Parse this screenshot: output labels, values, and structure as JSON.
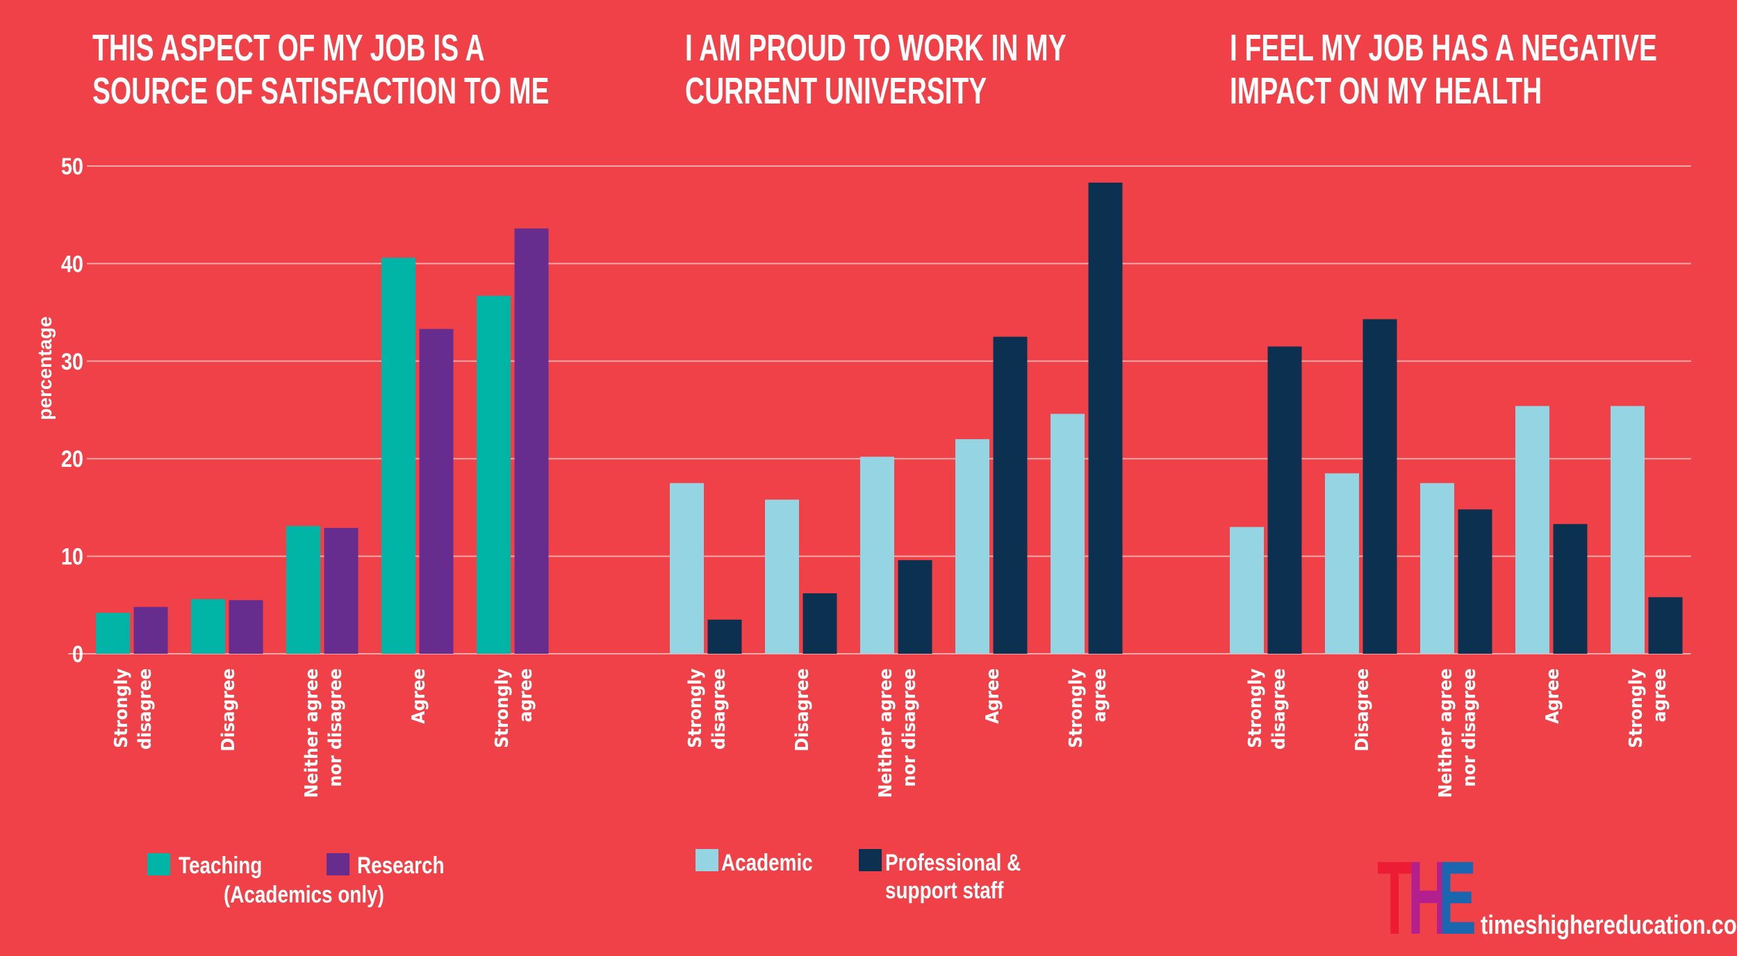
{
  "colors": {
    "background": "#ef4147",
    "teaching": "#00b5a6",
    "research": "#662d8f",
    "academic": "#95d4e3",
    "professional": "#0c3050",
    "gridline": "#f7a9a9",
    "logo_t": "#ec1c35",
    "logo_h": "#b31f8e",
    "logo_e": "#1a67b0"
  },
  "titles": [
    [
      "THIS ASPECT OF MY JOB IS A",
      "SOURCE OF SATISFACTION TO ME"
    ],
    [
      "I AM PROUD TO WORK IN MY",
      "CURRENT UNIVERSITY"
    ],
    [
      "I FEEL MY JOB HAS A NEGATIVE",
      "IMPACT ON MY HEALTH"
    ]
  ],
  "legends": {
    "chart1": {
      "teaching": "Teaching",
      "research": "Research",
      "note": "(Academics only)"
    },
    "chart2": {
      "academic": "Academic",
      "professional_line1": "Professional &",
      "professional_line2": "support staff"
    }
  },
  "branding": {
    "logo_letters": [
      "T",
      "H",
      "E"
    ],
    "site": "timeshighereducation.com"
  },
  "chart_data": [
    {
      "type": "bar",
      "title": "THIS ASPECT OF MY JOB IS A SOURCE OF SATISFACTION TO ME",
      "ylabel": "percentage",
      "xlabel": "",
      "ylim": [
        0,
        50
      ],
      "yticks": [
        0,
        10,
        20,
        30,
        40,
        50
      ],
      "grid": true,
      "legend": "bottom-left",
      "categories": [
        [
          "Strongly",
          "disagree"
        ],
        [
          "Disagree"
        ],
        [
          "Neither agree",
          "nor disagree"
        ],
        [
          "Agree"
        ],
        [
          "Strongly",
          "agree"
        ]
      ],
      "series": [
        {
          "name": "Teaching",
          "color": "#00b5a6",
          "values": [
            4.2,
            5.6,
            13.1,
            40.6,
            36.7
          ]
        },
        {
          "name": "Research",
          "color": "#662d8f",
          "values": [
            4.8,
            5.5,
            12.9,
            33.3,
            43.6
          ]
        }
      ]
    },
    {
      "type": "bar",
      "title": "I AM PROUD TO WORK IN MY CURRENT UNIVERSITY",
      "ylabel": "percentage",
      "xlabel": "",
      "ylim": [
        0,
        50
      ],
      "grid": true,
      "legend": "bottom-center",
      "categories": [
        [
          "Strongly",
          "disagree"
        ],
        [
          "Disagree"
        ],
        [
          "Neither agree",
          "nor disagree"
        ],
        [
          "Agree"
        ],
        [
          "Strongly",
          "agree"
        ]
      ],
      "series": [
        {
          "name": "Academic",
          "color": "#95d4e3",
          "values": [
            17.5,
            15.8,
            20.2,
            22.0,
            24.6
          ]
        },
        {
          "name": "Professional & support staff",
          "color": "#0c3050",
          "values": [
            3.5,
            6.2,
            9.6,
            32.5,
            48.3
          ]
        }
      ]
    },
    {
      "type": "bar",
      "title": "I FEEL MY JOB HAS A NEGATIVE IMPACT ON MY HEALTH",
      "ylabel": "percentage",
      "xlabel": "",
      "ylim": [
        0,
        50
      ],
      "grid": true,
      "legend": "bottom-center",
      "categories": [
        [
          "Strongly",
          "disagree"
        ],
        [
          "Disagree"
        ],
        [
          "Neither agree",
          "nor disagree"
        ],
        [
          "Agree"
        ],
        [
          "Strongly",
          "agree"
        ]
      ],
      "series": [
        {
          "name": "Academic",
          "color": "#95d4e3",
          "values": [
            13.0,
            18.5,
            17.5,
            25.4,
            25.4
          ]
        },
        {
          "name": "Professional & support staff",
          "color": "#0c3050",
          "values": [
            31.5,
            34.3,
            14.8,
            13.3,
            5.8
          ]
        }
      ]
    }
  ]
}
